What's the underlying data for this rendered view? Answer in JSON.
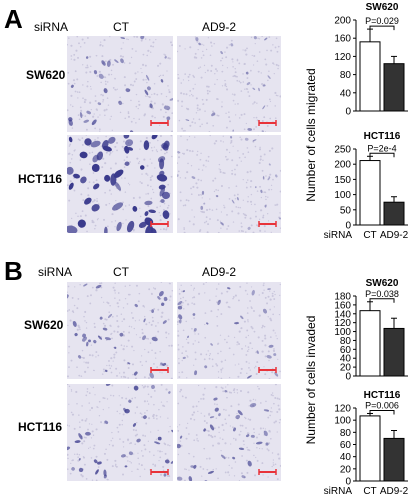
{
  "figure": {
    "panels": [
      {
        "letter": "A",
        "header": {
          "siRNA": "siRNA",
          "col1": "CT",
          "col2": "AD9-2"
        },
        "rows": [
          {
            "label": "SW620"
          },
          {
            "label": "HCT116"
          }
        ],
        "ylabel": "Number of cells migrated"
      },
      {
        "letter": "B",
        "header": {
          "siRNA": "siRNA",
          "col1": "CT",
          "col2": "AD9-2"
        },
        "rows": [
          {
            "label": "SW620"
          },
          {
            "label": "HCT116"
          }
        ],
        "ylabel": "Number of cells invaded"
      }
    ],
    "colors": {
      "ct_bar": "#ffffff",
      "ad9_bar": "#333333",
      "scale_bar": "#e8333a",
      "membrane": "#e6e4f0",
      "cells": "#3a3a8c"
    }
  },
  "chart_data": [
    {
      "type": "bar",
      "title": "SW620",
      "categories": [
        "CT",
        "AD9-2"
      ],
      "values": [
        152,
        104
      ],
      "errors": [
        28,
        16
      ],
      "ylim": [
        0,
        200
      ],
      "yticks": [
        "0",
        "40",
        "80",
        "120",
        "160",
        "200"
      ],
      "pvalue": "P=0.029",
      "xlabel_prefix": "siRNA",
      "show_xlabels": false
    },
    {
      "type": "bar",
      "title": "HCT116",
      "categories": [
        "CT",
        "AD9-2"
      ],
      "values": [
        212,
        75
      ],
      "errors": [
        14,
        18
      ],
      "ylim": [
        0,
        250
      ],
      "yticks": [
        "0",
        "50",
        "100",
        "150",
        "200",
        "250"
      ],
      "pvalue": "P=2e-4",
      "xlabel_prefix": "siRNA",
      "show_xlabels": true
    },
    {
      "type": "bar",
      "title": "SW620",
      "categories": [
        "CT",
        "AD9-2"
      ],
      "values": [
        147,
        107
      ],
      "errors": [
        20,
        23
      ],
      "ylim": [
        0,
        180
      ],
      "yticks": [
        "0",
        "20",
        "40",
        "60",
        "80",
        "100",
        "120",
        "140",
        "160",
        "180"
      ],
      "pvalue": "P=0.038",
      "xlabel_prefix": "siRNA",
      "show_xlabels": false
    },
    {
      "type": "bar",
      "title": "HCT116",
      "categories": [
        "CT",
        "AD9-2"
      ],
      "values": [
        107,
        70
      ],
      "errors": [
        4,
        13
      ],
      "ylim": [
        0,
        120
      ],
      "yticks": [
        "0",
        "20",
        "40",
        "60",
        "80",
        "100",
        "120"
      ],
      "pvalue": "P=0.006",
      "xlabel_prefix": "siRNA",
      "show_xlabels": true
    }
  ]
}
